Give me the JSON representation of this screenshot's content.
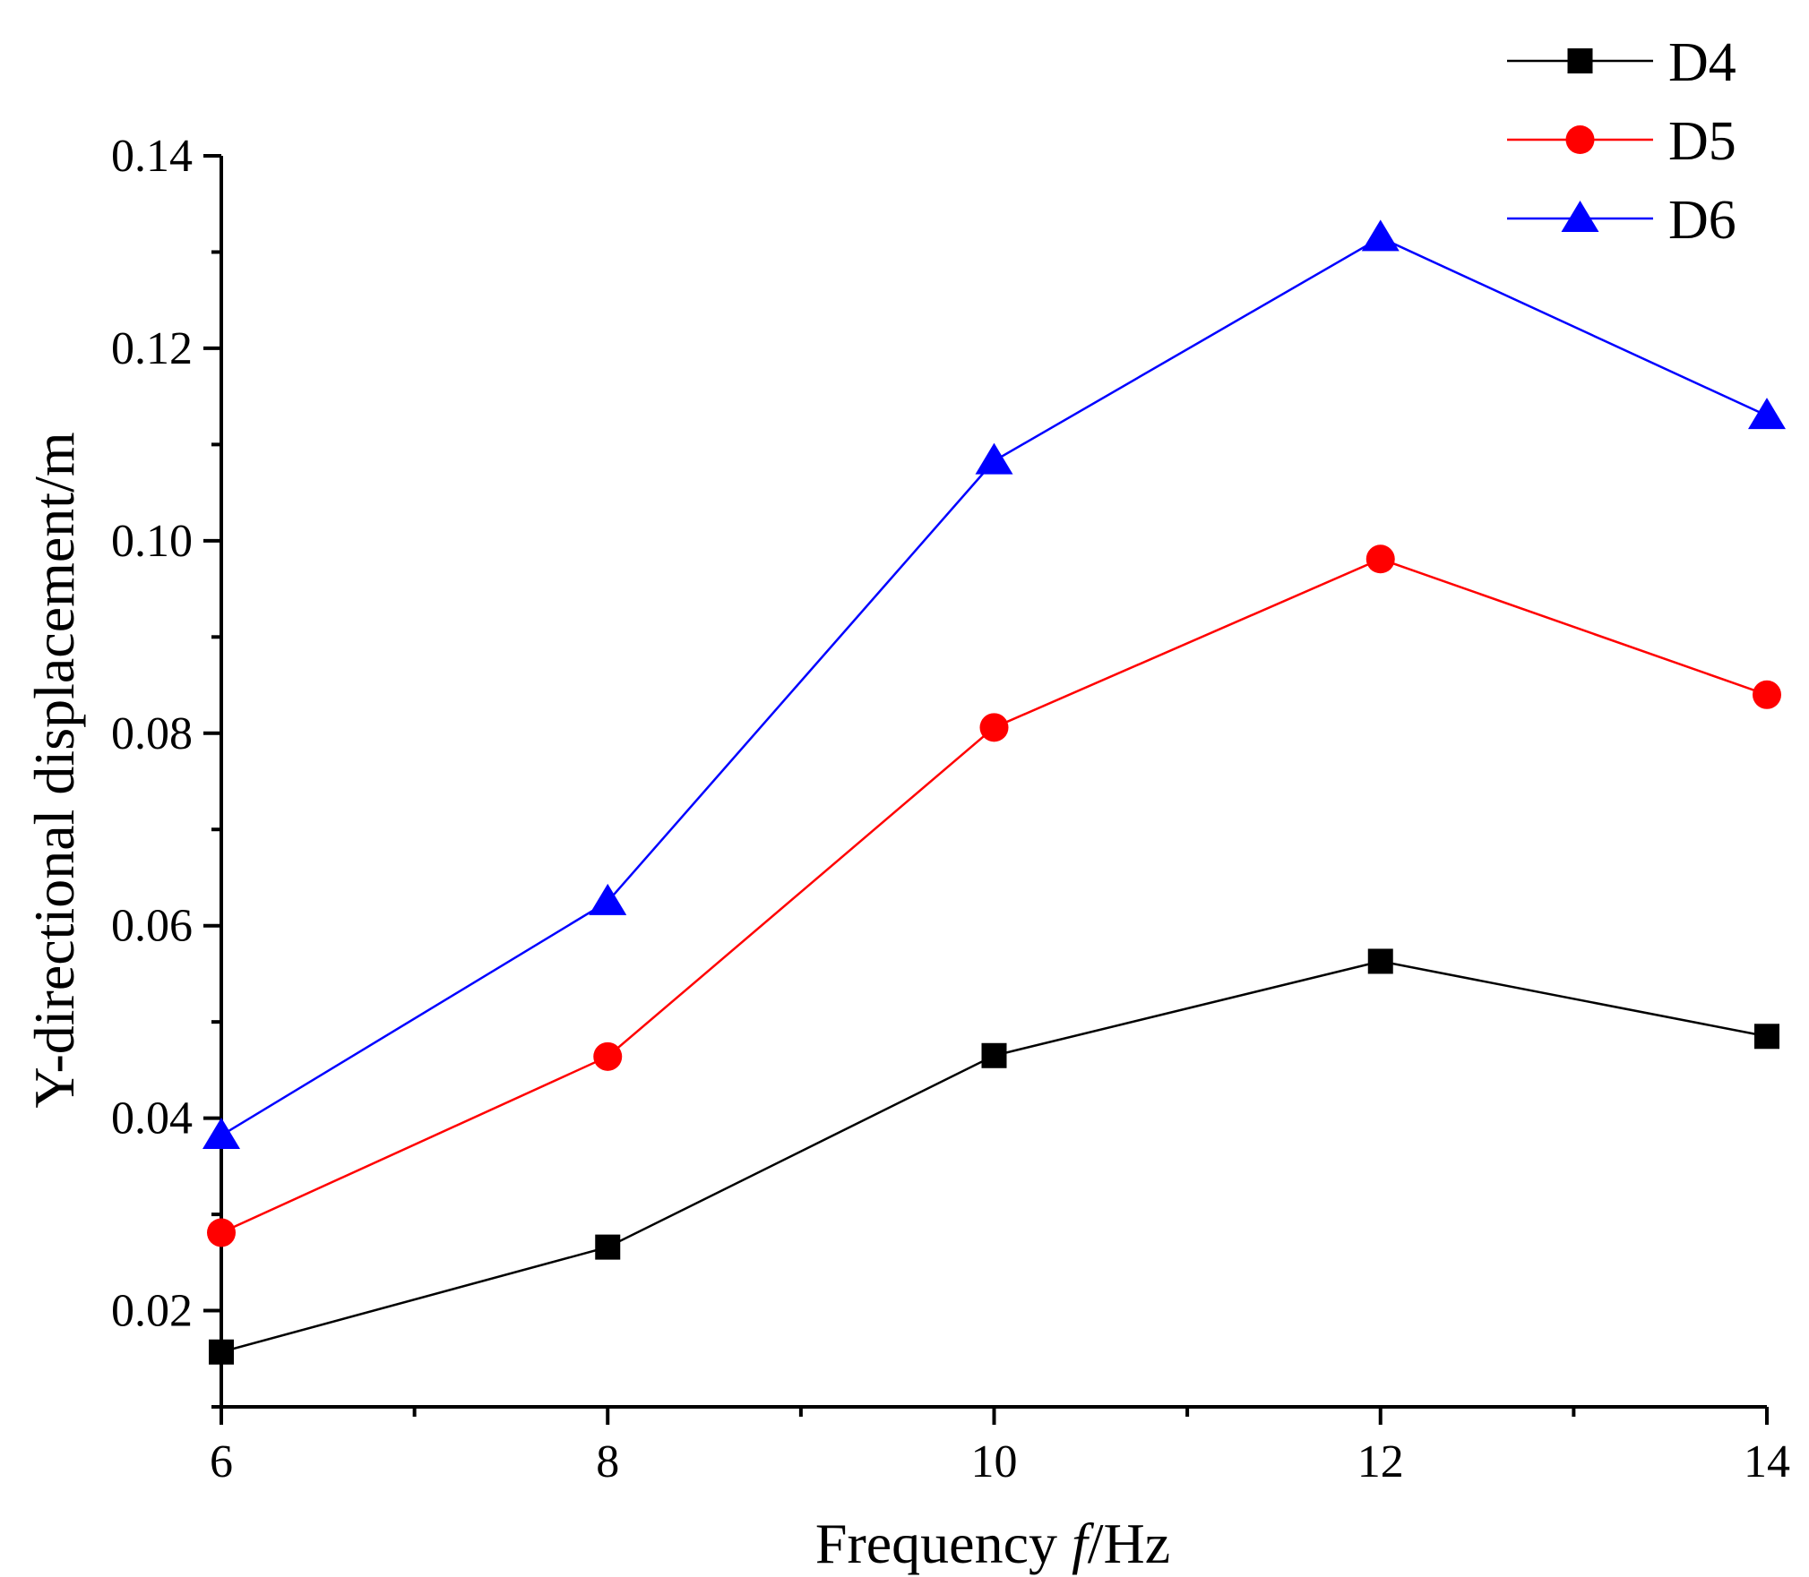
{
  "chart_data": {
    "type": "line",
    "title": "",
    "xlabel_prefix": "Frequency ",
    "xlabel_var": "f",
    "xlabel_suffix": "/Hz",
    "ylabel": "Y-directional displacement/m",
    "x": [
      6,
      8,
      10,
      12,
      14
    ],
    "xlim": [
      6,
      14
    ],
    "ylim": [
      0.01,
      0.14
    ],
    "xticks": [
      6,
      8,
      10,
      12,
      14
    ],
    "xtick_labels": [
      "6",
      "8",
      "10",
      "12",
      "14"
    ],
    "yticks": [
      0.02,
      0.04,
      0.06,
      0.08,
      0.1,
      0.12,
      0.14
    ],
    "ytick_labels": [
      "0.02",
      "0.04",
      "0.06",
      "0.08",
      "0.10",
      "0.12",
      "0.14"
    ],
    "grid": false,
    "legend_position": "top-right",
    "series": [
      {
        "name": "D4",
        "color": "#000000",
        "marker": "square",
        "values": [
          0.0157,
          0.0266,
          0.0465,
          0.0563,
          0.0485
        ]
      },
      {
        "name": "D5",
        "color": "#ff0000",
        "marker": "circle",
        "values": [
          0.0281,
          0.0464,
          0.0806,
          0.0981,
          0.084
        ]
      },
      {
        "name": "D6",
        "color": "#0000ff",
        "marker": "triangle",
        "values": [
          0.0382,
          0.0625,
          0.1083,
          0.1315,
          0.113
        ]
      }
    ]
  }
}
